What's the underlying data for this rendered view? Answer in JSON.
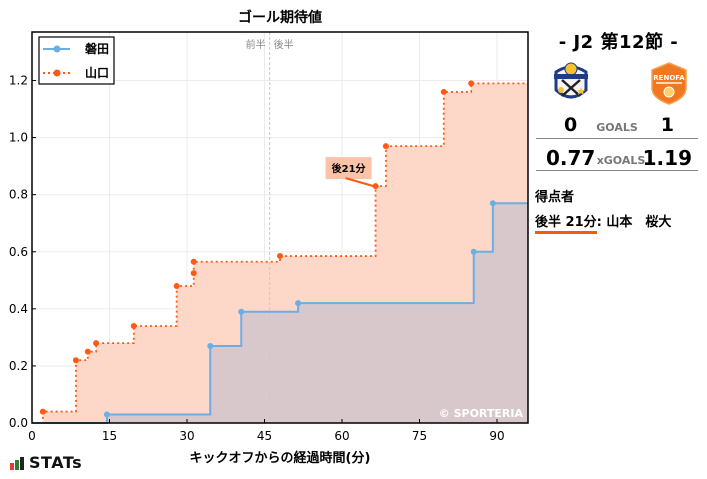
{
  "chart_data": {
    "type": "line",
    "subtype": "step-area",
    "title": "ゴール期待値",
    "xlabel": "キックオフからの経過時間(分)",
    "ylabel": "",
    "xlim": [
      0,
      96
    ],
    "ylim": [
      0,
      1.37
    ],
    "xticks": [
      0,
      15,
      30,
      45,
      60,
      75,
      90
    ],
    "yticks": [
      0.0,
      0.2,
      0.4,
      0.6,
      0.8,
      1.0,
      1.2
    ],
    "ytick_labels": [
      "0.0",
      "0.2",
      "0.4",
      "0.6",
      "0.8",
      "1.0",
      "1.2"
    ],
    "grid": true,
    "legend_position": "upper left",
    "halftime_minute": 46,
    "halftime_labels": {
      "first": "前半",
      "second": "後半"
    },
    "watermark": "© SPORTERIA",
    "series": [
      {
        "name": "磐田",
        "color": "#6aaee6",
        "fill": "#d8c8cc",
        "style": "solid",
        "x": [
          0,
          14.5,
          34.5,
          40.5,
          51.5,
          85.5,
          89.2,
          96
        ],
        "values": [
          0,
          0.03,
          0.27,
          0.39,
          0.42,
          0.6,
          0.77,
          0.77
        ]
      },
      {
        "name": "山口",
        "color": "#ff5a14",
        "fill": "#fdd7c8",
        "style": "dotted",
        "x": [
          0,
          2.1,
          8.5,
          10.8,
          12.4,
          19.7,
          28.0,
          31.3,
          31.3,
          48.0,
          66.5,
          68.5,
          79.7,
          85.0,
          96
        ],
        "values": [
          0,
          0.04,
          0.22,
          0.25,
          0.28,
          0.34,
          0.48,
          0.525,
          0.565,
          0.585,
          0.83,
          0.97,
          1.16,
          1.19,
          1.19
        ]
      }
    ],
    "annotations": [
      {
        "text": "後21分",
        "series": "山口",
        "x": 66.5,
        "y": 0.83
      }
    ]
  },
  "match": {
    "title": "-  J2 第12節  -",
    "home_team": "磐田",
    "away_team": "山口",
    "home_logo": "jubilo-iwata-crest",
    "away_logo": "renofa-yamaguchi-crest",
    "goals_label": "GOALS",
    "home_goals": "0",
    "away_goals": "1",
    "xg_label": "xGOALS",
    "home_xg": "0.77",
    "away_xg": "1.19"
  },
  "scorers": {
    "title": "得点者",
    "items": [
      {
        "time": "後半 21分",
        "name": ": 山本　桜大",
        "team_color": "#f05a14"
      }
    ]
  },
  "branding": {
    "stats_label": "STATs",
    "bar_colors": [
      "#e53935",
      "#2e7d32",
      "#222222"
    ]
  }
}
